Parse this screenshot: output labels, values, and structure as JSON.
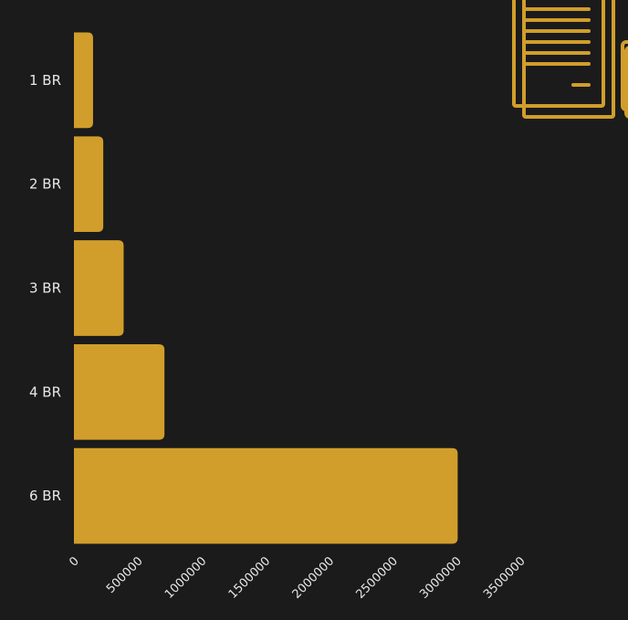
{
  "colors": {
    "background": "#1b1b1b",
    "bar": "#d19e2b",
    "text": "#e8e8e8",
    "icon": "#d19e2b"
  },
  "icons": {
    "top_right": "document-pages-icon"
  },
  "chart_data": {
    "type": "bar",
    "orientation": "horizontal",
    "title": "",
    "xlabel": "",
    "ylabel": "",
    "categories": [
      "1 BR",
      "2 BR",
      "3 BR",
      "4 BR",
      "6 BR"
    ],
    "values": [
      150000,
      230000,
      390000,
      710000,
      3010000
    ],
    "x_ticks": [
      "0",
      "500000",
      "1000000",
      "1500000",
      "2000000",
      "2500000",
      "3000000",
      "3500000"
    ],
    "xlim": [
      0,
      3500000
    ],
    "grid": false,
    "legend": "none"
  }
}
